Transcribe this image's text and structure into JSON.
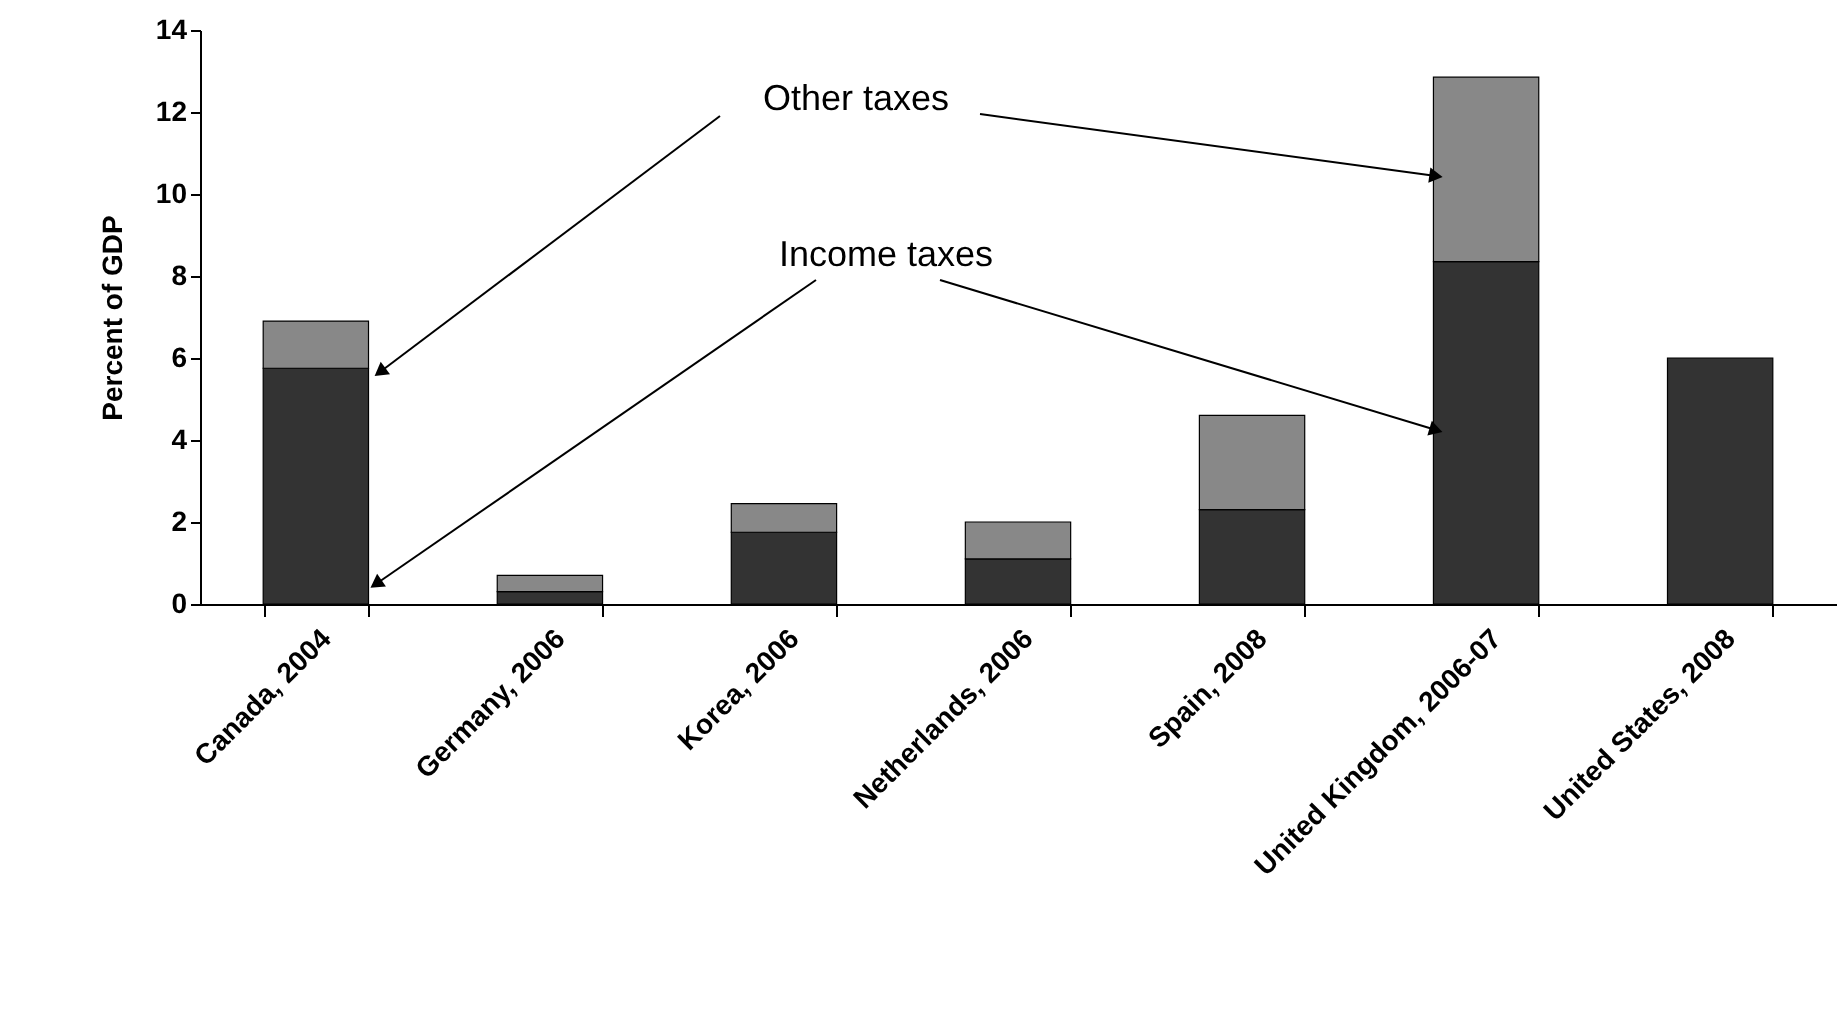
{
  "chart_data": {
    "type": "bar",
    "stacked": true,
    "ylabel": "Percent of GDP",
    "categories": [
      "Canada, 2004",
      "Germany, 2006",
      "Korea, 2006",
      "Netherlands, 2006",
      "Spain, 2008",
      "United Kingdom, 2006-07",
      "United States, 2008"
    ],
    "series": [
      {
        "name": "Income taxes",
        "color": "#333333",
        "values": [
          5.75,
          0.3,
          1.75,
          1.1,
          2.3,
          8.35,
          6.0
        ]
      },
      {
        "name": "Other taxes",
        "color": "#888888",
        "values": [
          1.15,
          0.4,
          0.7,
          0.9,
          2.3,
          4.5,
          null
        ]
      }
    ],
    "ylim": [
      0,
      14
    ],
    "yticks": [
      0,
      2,
      4,
      6,
      8,
      10,
      12,
      14
    ],
    "grid": false,
    "legend": false
  }
}
